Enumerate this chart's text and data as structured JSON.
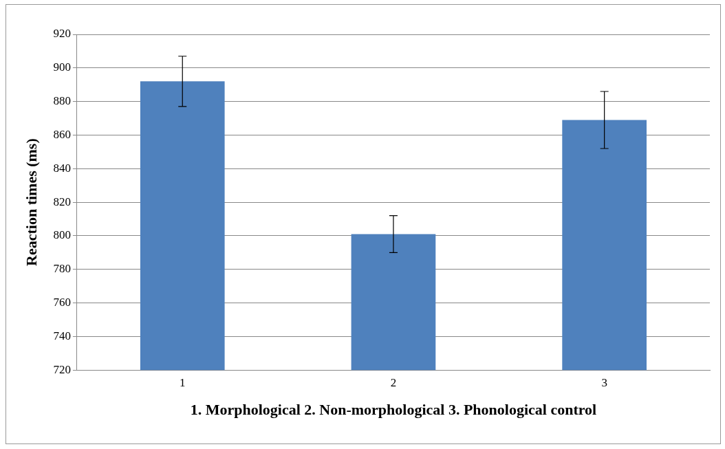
{
  "chart_data": {
    "type": "bar",
    "xlabel": "1. Morphological 2. Non-morphological 3. Phonological control",
    "ylabel": "Reaction times (ms)",
    "categories": [
      "1",
      "2",
      "3"
    ],
    "values": [
      892,
      801,
      869
    ],
    "errors": [
      15,
      11,
      17
    ],
    "color": "#4f81bd",
    "ylim": [
      720,
      920
    ],
    "yticks": [
      720,
      740,
      760,
      780,
      800,
      820,
      840,
      860,
      880,
      900,
      920
    ],
    "grid": "y",
    "legend": false
  }
}
